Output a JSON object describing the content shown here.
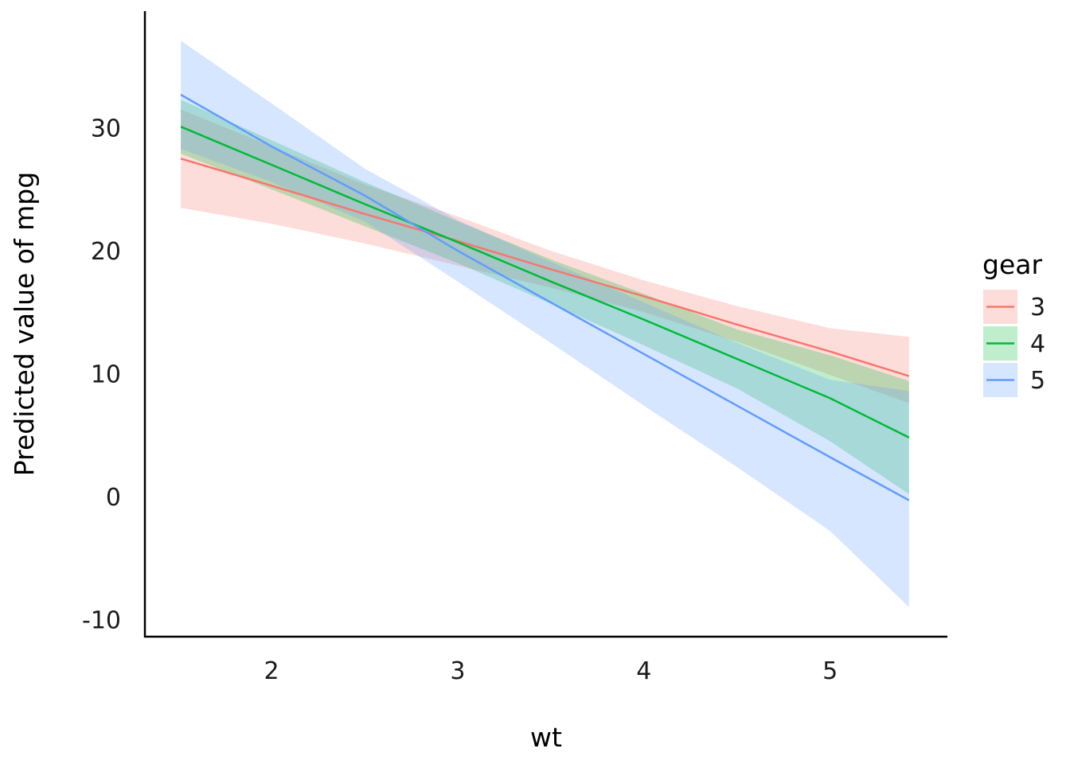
{
  "chart_data": {
    "type": "line",
    "title": "",
    "xlabel": "wt",
    "ylabel": "Predicted value of mpg",
    "xlim": [
      1.32,
      5.63
    ],
    "ylim": [
      -11.4,
      39.5
    ],
    "x_ticks": [
      2,
      3,
      4,
      5
    ],
    "y_ticks": [
      -10,
      0,
      10,
      20,
      30
    ],
    "x_tick_labels": [
      "2",
      "3",
      "4",
      "5"
    ],
    "y_tick_labels": [
      "-10",
      "0",
      "10",
      "20",
      "30"
    ],
    "grid": false,
    "legend": {
      "title": "gear",
      "position": "right"
    },
    "series": [
      {
        "name": "3",
        "color": "#F8766D",
        "x": [
          1.513,
          2.0,
          2.5,
          3.0,
          3.5,
          4.0,
          4.5,
          5.0,
          5.424
        ],
        "y": [
          27.5,
          25.3,
          23.0,
          20.8,
          18.5,
          16.3,
          14.0,
          11.8,
          9.8
        ],
        "lower": [
          23.5,
          22.2,
          20.6,
          18.8,
          17.0,
          15.0,
          12.6,
          9.9,
          7.6
        ],
        "upper": [
          31.5,
          28.5,
          25.4,
          22.8,
          20.0,
          17.6,
          15.5,
          13.7,
          13.0
        ]
      },
      {
        "name": "4",
        "color": "#00BA38",
        "x": [
          1.513,
          2.0,
          2.5,
          3.0,
          3.5,
          4.0,
          4.5,
          5.0,
          5.424
        ],
        "y": [
          30.1,
          27.0,
          23.8,
          20.7,
          17.5,
          14.4,
          11.2,
          8.0,
          4.8
        ],
        "lower": [
          27.9,
          25.0,
          22.0,
          19.0,
          15.7,
          12.3,
          8.8,
          4.5,
          0.2
        ],
        "upper": [
          32.3,
          29.0,
          25.6,
          22.4,
          19.3,
          16.5,
          13.6,
          11.5,
          9.4
        ]
      },
      {
        "name": "5",
        "color": "#619CFF",
        "x": [
          1.513,
          2.0,
          2.5,
          3.0,
          3.5,
          4.0,
          4.5,
          5.0,
          5.424
        ],
        "y": [
          32.7,
          28.5,
          24.5,
          20.0,
          15.8,
          11.6,
          7.4,
          3.2,
          -0.3
        ],
        "lower": [
          28.3,
          25.6,
          22.4,
          17.5,
          12.5,
          7.4,
          2.4,
          -2.8,
          -9.0
        ],
        "upper": [
          37.1,
          32.0,
          26.7,
          22.5,
          19.1,
          15.8,
          12.5,
          9.5,
          8.6
        ]
      }
    ]
  }
}
